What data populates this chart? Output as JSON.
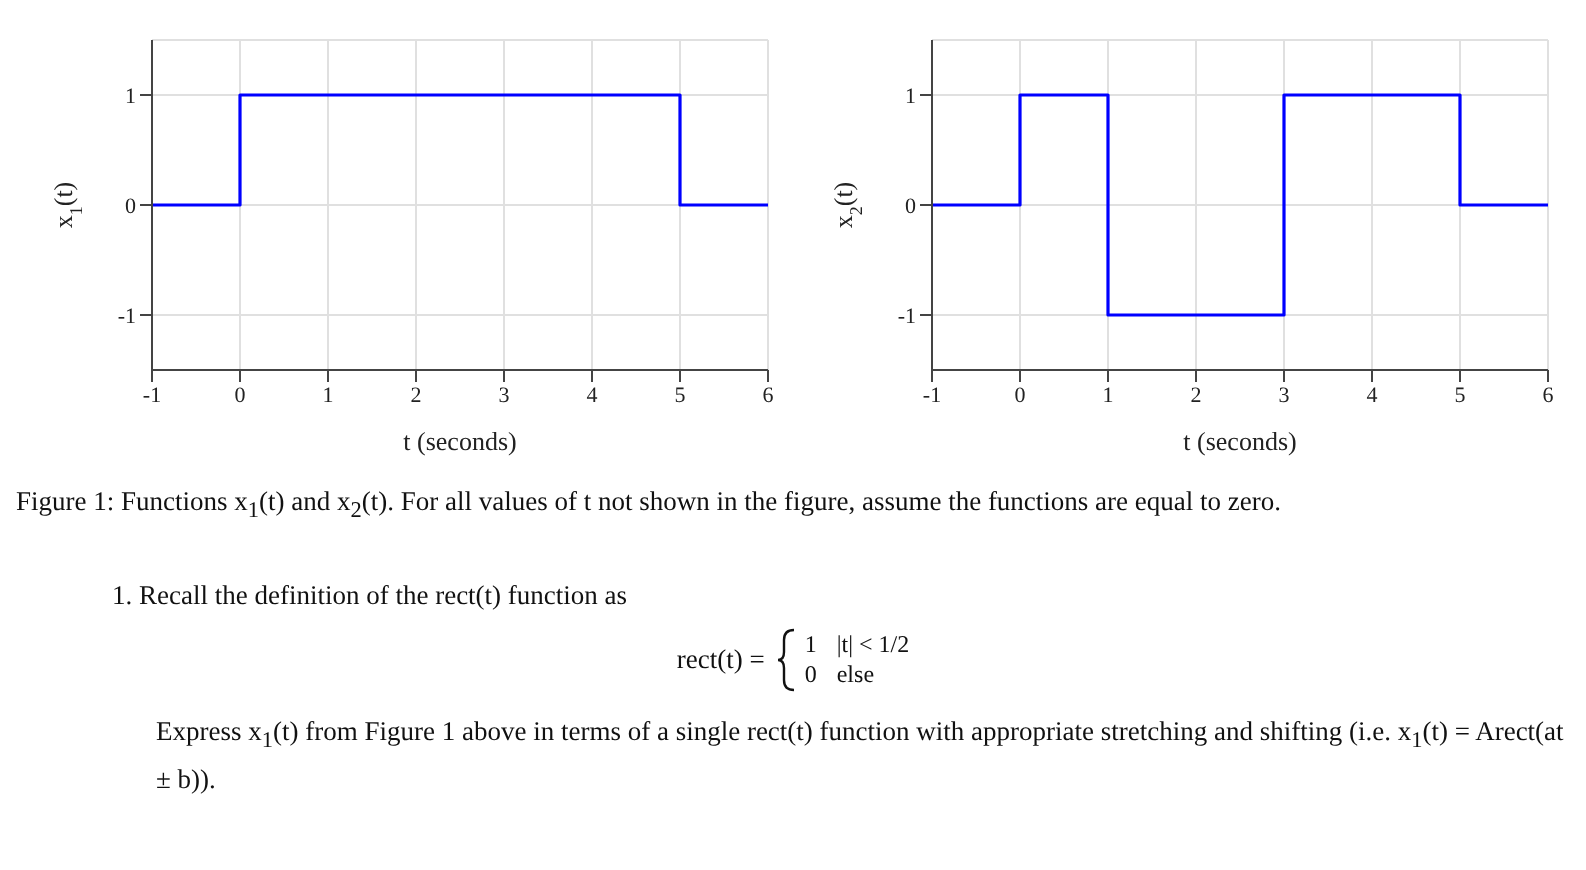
{
  "chart_data": [
    {
      "type": "step",
      "x": [
        -1,
        0,
        5,
        6
      ],
      "values": [
        0,
        1,
        0,
        0
      ],
      "color": "#0000ff",
      "xlim": [
        -1,
        6
      ],
      "ylim": [
        -1.5,
        1.5
      ],
      "xticks": [
        -1,
        0,
        1,
        2,
        3,
        4,
        5,
        6
      ],
      "yticks": [
        -1,
        0,
        1
      ],
      "grid": true,
      "xlabel": "t (seconds)",
      "ylabel": "x$_{1}$(t)",
      "annotations": [
        "Figure 1: Functions x$_{1}$(t) and x$_{2}$(t). For all values of t not shown in the figure, assume the functions are equal to zero.",
        "1. Recall the definition of the rect(t) function as",
        "rect(t) =",
        "1",
        "|t| < 1/2",
        "0",
        "else",
        "Express x$_{1}$(t) from Figure 1 above in terms of a single rect(t) function with appropriate stretching and shifting (i.e. x$_{1}$(t) = Arect(at ± b))."
      ]
    },
    {
      "type": "step",
      "x": [
        -1,
        0,
        1,
        3,
        5,
        6
      ],
      "values": [
        0,
        1,
        -1,
        1,
        0,
        0
      ],
      "color": "#0000ff",
      "xlim": [
        -1,
        6
      ],
      "ylim": [
        -1.5,
        1.5
      ],
      "xticks": [
        -1,
        0,
        1,
        2,
        3,
        4,
        5,
        6
      ],
      "yticks": [
        -1,
        0,
        1
      ],
      "grid": true,
      "xlabel": "t (seconds)",
      "ylabel": "x$_{2}$(t)"
    }
  ]
}
